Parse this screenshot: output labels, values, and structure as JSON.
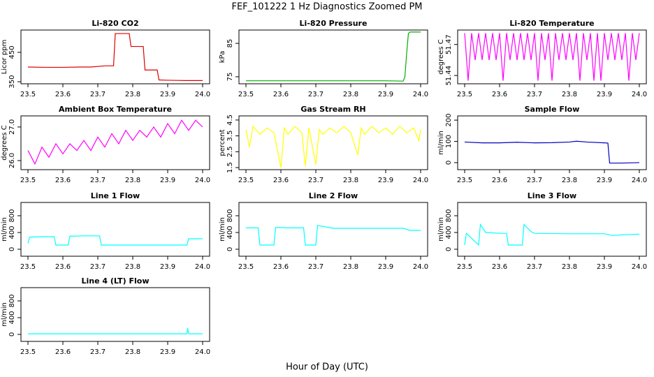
{
  "title": "FEF_101222  1 Hz Diagnostics Zoomed PM",
  "x_label": "Hour of Day (UTC)",
  "chart_data": [
    {
      "type": "line",
      "title": "Li-820 CO2",
      "ylabel": "Licor ppm",
      "color": "#e00000",
      "x": [
        23.5,
        23.55,
        23.6,
        23.65,
        23.68,
        23.72,
        23.745,
        23.75,
        23.79,
        23.795,
        23.83,
        23.835,
        23.87,
        23.875,
        23.9,
        23.95,
        24.0
      ],
      "values": [
        400,
        399,
        399,
        400,
        400,
        404,
        404,
        514,
        514,
        470,
        470,
        390,
        390,
        356,
        355,
        354,
        354
      ],
      "xlim": [
        23.48,
        24.02
      ],
      "xticks": [
        23.5,
        23.6,
        23.7,
        23.8,
        23.9,
        {
          "value": 24,
          "label": "24.0"
        }
      ],
      "ylim": [
        343,
        526
      ],
      "yticks": [
        350,
        450
      ]
    },
    {
      "type": "line",
      "title": "Li-820 Pressure",
      "ylabel": "kPa",
      "color": "#00b000",
      "x": [
        23.5,
        23.6,
        23.7,
        23.8,
        23.9,
        23.95,
        23.955,
        23.96,
        23.965,
        23.97,
        24.0
      ],
      "values": [
        73.8,
        73.8,
        73.8,
        73.8,
        73.8,
        73.7,
        75,
        82,
        88,
        88.4,
        88.4
      ],
      "xlim": [
        23.48,
        24.02
      ],
      "xticks": [
        23.5,
        23.6,
        23.7,
        23.8,
        23.9,
        {
          "value": 24,
          "label": "24.0"
        }
      ],
      "ylim": [
        72.9,
        89
      ],
      "yticks": [
        75,
        85
      ]
    },
    {
      "type": "line",
      "title": "Li-820 Temperature",
      "ylabel": "degrees C",
      "color": "#ff00ff",
      "x": [
        23.5,
        23.51,
        23.52,
        23.53,
        23.54,
        23.55,
        23.56,
        23.57,
        23.58,
        23.59,
        23.6,
        23.61,
        23.62,
        23.63,
        23.64,
        23.65,
        23.66,
        23.67,
        23.68,
        23.69,
        23.7,
        23.71,
        23.72,
        23.73,
        23.74,
        23.75,
        23.76,
        23.77,
        23.78,
        23.79,
        23.8,
        23.81,
        23.82,
        23.83,
        23.84,
        23.85,
        23.86,
        23.87,
        23.88,
        23.89,
        23.9,
        23.91,
        23.92,
        23.93,
        23.94,
        23.95,
        23.96,
        23.97,
        23.98,
        23.99,
        24.0
      ],
      "values": [
        51.481,
        51.435,
        51.481,
        51.455,
        51.481,
        51.455,
        51.481,
        51.455,
        51.481,
        51.455,
        51.481,
        51.435,
        51.481,
        51.455,
        51.481,
        51.455,
        51.481,
        51.455,
        51.481,
        51.455,
        51.481,
        51.435,
        51.481,
        51.455,
        51.481,
        51.435,
        51.481,
        51.455,
        51.481,
        51.455,
        51.481,
        51.455,
        51.481,
        51.435,
        51.481,
        51.455,
        51.481,
        51.435,
        51.481,
        51.435,
        51.481,
        51.455,
        51.481,
        51.455,
        51.481,
        51.455,
        51.481,
        51.435,
        51.481,
        51.455,
        51.481
      ],
      "xlim": [
        23.48,
        24.02
      ],
      "xticks": [
        23.5,
        23.6,
        23.7,
        23.8,
        23.9,
        {
          "value": 24,
          "label": "24.0"
        }
      ],
      "ylim": [
        51.432,
        51.484
      ],
      "yticks": [
        51.44,
        51.47
      ]
    },
    {
      "type": "line",
      "title": "Ambient Box Temperature",
      "ylabel": "degrees C",
      "color": "#ff00ff",
      "x": [
        23.5,
        23.52,
        23.54,
        23.56,
        23.58,
        23.6,
        23.62,
        23.64,
        23.66,
        23.68,
        23.7,
        23.72,
        23.74,
        23.76,
        23.78,
        23.8,
        23.82,
        23.84,
        23.86,
        23.88,
        23.9,
        23.92,
        23.94,
        23.96,
        23.98,
        24.0
      ],
      "values": [
        26.3,
        25.9,
        26.4,
        26.1,
        26.5,
        26.2,
        26.5,
        26.3,
        26.6,
        26.3,
        26.7,
        26.4,
        26.8,
        26.5,
        26.9,
        26.6,
        26.9,
        26.7,
        27.0,
        26.7,
        27.1,
        26.8,
        27.2,
        26.9,
        27.2,
        27.0
      ],
      "xlim": [
        23.48,
        24.02
      ],
      "xticks": [
        23.5,
        23.6,
        23.7,
        23.8,
        23.9,
        {
          "value": 24,
          "label": "24.0"
        }
      ],
      "ylim": [
        25.73,
        27.33
      ],
      "yticks": [
        {
          "value": 26,
          "label": "26.0"
        },
        {
          "value": 27,
          "label": "27.0"
        }
      ]
    },
    {
      "type": "line",
      "title": "Gas Stream RH",
      "ylabel": "percent",
      "color": "#ffff00",
      "x": [
        23.5,
        23.51,
        23.52,
        23.54,
        23.56,
        23.58,
        23.6,
        23.61,
        23.62,
        23.64,
        23.66,
        23.67,
        23.68,
        23.7,
        23.71,
        23.72,
        23.74,
        23.76,
        23.78,
        23.8,
        23.82,
        23.83,
        23.84,
        23.86,
        23.88,
        23.9,
        23.92,
        23.94,
        23.96,
        23.98,
        23.995,
        24.0
      ],
      "values": [
        3.9,
        2.8,
        4.1,
        3.6,
        4.0,
        3.7,
        1.5,
        4.0,
        3.6,
        4.1,
        3.7,
        1.6,
        4.0,
        1.7,
        3.9,
        3.6,
        4.0,
        3.7,
        4.1,
        3.7,
        2.3,
        4.0,
        3.6,
        4.1,
        3.7,
        4.0,
        3.6,
        4.1,
        3.7,
        4.0,
        3.2,
        3.9
      ],
      "xlim": [
        23.48,
        24.02
      ],
      "xticks": [
        23.5,
        23.6,
        23.7,
        23.8,
        23.9,
        {
          "value": 24,
          "label": "24.0"
        }
      ],
      "ylim": [
        1.37,
        4.76
      ],
      "yticks": [
        1.5,
        2.5,
        3.5,
        4.5
      ]
    },
    {
      "type": "line",
      "title": "Sample Flow",
      "ylabel": "ml/min",
      "color": "#0000c0",
      "x": [
        23.5,
        23.55,
        23.6,
        23.65,
        23.7,
        23.75,
        23.8,
        23.82,
        23.85,
        23.9,
        23.91,
        23.915,
        23.95,
        24.0
      ],
      "values": [
        97,
        93,
        93,
        96,
        93,
        94,
        97,
        101,
        97,
        93,
        92,
        -2,
        -2,
        0
      ],
      "xlim": [
        23.48,
        24.02
      ],
      "xticks": [
        23.5,
        23.6,
        23.7,
        23.8,
        23.9,
        {
          "value": 24,
          "label": "24.0"
        }
      ],
      "ylim": [
        -33,
        220
      ],
      "yticks": [
        0,
        100,
        200
      ]
    },
    {
      "type": "line",
      "title": "Line 1 Flow",
      "ylabel": "ml/min",
      "color": "#00ffff",
      "x": [
        23.5,
        23.505,
        23.55,
        23.575,
        23.58,
        23.615,
        23.62,
        23.66,
        23.705,
        23.71,
        23.8,
        23.9,
        23.955,
        23.96,
        24.0
      ],
      "values": [
        140,
        290,
        300,
        300,
        100,
        100,
        310,
        320,
        320,
        100,
        100,
        100,
        100,
        250,
        250
      ],
      "xlim": [
        23.48,
        24.02
      ],
      "xticks": [
        23.5,
        23.6,
        23.7,
        23.8,
        23.9,
        {
          "value": 24,
          "label": "24.0"
        }
      ],
      "ylim": [
        -167,
        1117
      ],
      "yticks": [
        0,
        400,
        800
      ]
    },
    {
      "type": "line",
      "title": "Line 2 Flow",
      "ylabel": "ml/min",
      "color": "#00ffff",
      "x": [
        23.5,
        23.535,
        23.54,
        23.58,
        23.585,
        23.62,
        23.665,
        23.67,
        23.7,
        23.705,
        23.75,
        23.85,
        23.95,
        23.97,
        24.0
      ],
      "values": [
        510,
        510,
        100,
        100,
        520,
        510,
        510,
        100,
        100,
        570,
        500,
        500,
        500,
        450,
        450
      ],
      "xlim": [
        23.48,
        24.02
      ],
      "xticks": [
        23.5,
        23.6,
        23.7,
        23.8,
        23.9,
        {
          "value": 24,
          "label": "24.0"
        }
      ],
      "ylim": [
        -167,
        1117
      ],
      "yticks": [
        0,
        400,
        800
      ]
    },
    {
      "type": "line",
      "title": "Line 3 Flow",
      "ylabel": "ml/min",
      "color": "#00ffff",
      "x": [
        23.5,
        23.505,
        23.54,
        23.545,
        23.56,
        23.6,
        23.62,
        23.625,
        23.665,
        23.67,
        23.69,
        23.7,
        23.8,
        23.9,
        23.92,
        24.0
      ],
      "values": [
        100,
        380,
        100,
        590,
        400,
        380,
        380,
        100,
        100,
        590,
        420,
        380,
        370,
        370,
        330,
        360
      ],
      "xlim": [
        23.48,
        24.02
      ],
      "xticks": [
        23.5,
        23.6,
        23.7,
        23.8,
        23.9,
        {
          "value": 24,
          "label": "24.0"
        }
      ],
      "ylim": [
        -167,
        1117
      ],
      "yticks": [
        0,
        400,
        800
      ]
    },
    {
      "type": "line",
      "title": "Line 4 (LT) Flow",
      "ylabel": "ml/min",
      "color": "#00ffff",
      "x": [
        23.5,
        23.6,
        23.7,
        23.8,
        23.9,
        23.955,
        23.957,
        23.96,
        24.0
      ],
      "values": [
        15,
        15,
        15,
        15,
        15,
        15,
        150,
        15,
        15
      ],
      "xlim": [
        23.48,
        24.02
      ],
      "xticks": [
        23.5,
        23.6,
        23.7,
        23.8,
        23.9,
        {
          "value": 24,
          "label": "24.0"
        }
      ],
      "ylim": [
        -167,
        1117
      ],
      "yticks": [
        0,
        400,
        800
      ]
    }
  ]
}
